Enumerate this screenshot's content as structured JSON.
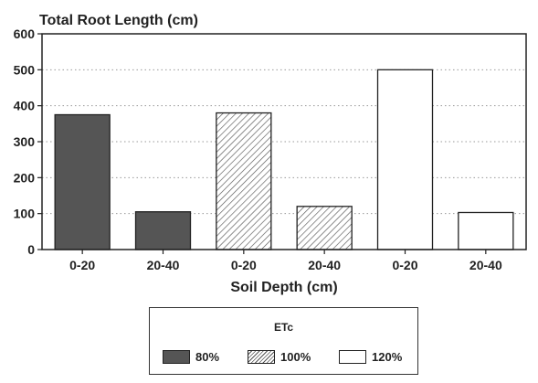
{
  "chart_data": {
    "type": "bar",
    "title": "Total Root Length (cm)",
    "xlabel": "Soil Depth (cm)",
    "ylabel": "",
    "ylim": [
      0,
      600
    ],
    "yticks": [
      0,
      100,
      200,
      300,
      400,
      500,
      600
    ],
    "categories": [
      "0-20",
      "20-40",
      "0-20",
      "20-40",
      "0-20",
      "20-40"
    ],
    "values": [
      375,
      105,
      380,
      120,
      500,
      103
    ],
    "bar_etc": [
      "80%",
      "80%",
      "100%",
      "100%",
      "120%",
      "120%"
    ],
    "grid": "horizontal dotted",
    "legend_placement": "bottom-center"
  },
  "legend": {
    "title": "ETc",
    "items": [
      {
        "label": "80%",
        "fill": "dark"
      },
      {
        "label": "100%",
        "fill": "hatched"
      },
      {
        "label": "120%",
        "fill": "white"
      }
    ]
  },
  "colors": {
    "dark_fill": "#555555",
    "hatch": "#555555",
    "outline": "#222222"
  }
}
